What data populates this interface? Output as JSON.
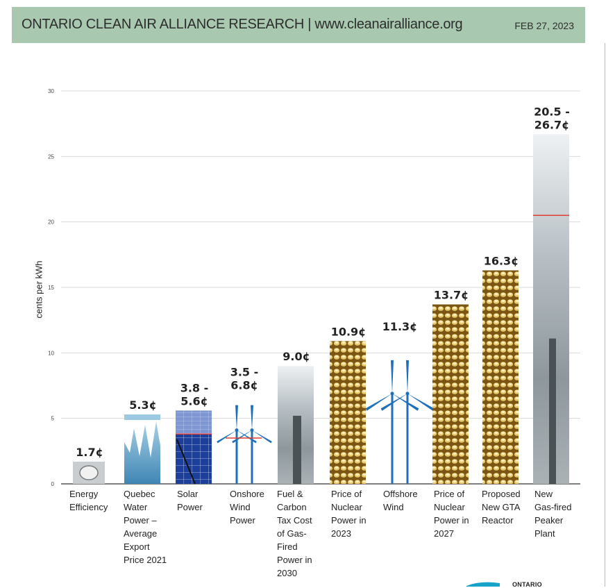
{
  "header": {
    "title": "ONTARIO CLEAN AIR ALLIANCE RESEARCH | www.cleanairalliance.org",
    "date": "FEB 27, 2023"
  },
  "logo": {
    "text": "ONTARIO"
  },
  "colors": {
    "header_bg": "#a9c8b0",
    "wind_blue": "#1e6fb8",
    "water_blue": "#5a9fc6",
    "nuclear_gold": "#b88a24",
    "smoke_grey": "#9aa2a6",
    "marker_red": "#e03c31"
  },
  "chart_data": {
    "type": "bar",
    "ylabel": "cents per kWh",
    "xlabel": "",
    "ylim": [
      0,
      30
    ],
    "yticks": [
      0,
      5,
      10,
      15,
      20,
      25,
      30
    ],
    "grid": true,
    "bars": [
      {
        "category": "Energy\nEfficiency",
        "value": 1.7,
        "label": "1.7¢",
        "fill": "efficiency"
      },
      {
        "category": "Quebec\nWater\nPower –\nAverage\nExport\nPrice 2021",
        "value": 5.3,
        "label": "5.3¢",
        "fill": "water"
      },
      {
        "category": "Solar\nPower",
        "low": 3.8,
        "value": 5.6,
        "label": "3.8 -\n5.6¢",
        "fill": "solar"
      },
      {
        "category": "Onshore\nWind\nPower",
        "low": 3.5,
        "value": 6.8,
        "label": "3.5 -\n6.8¢",
        "fill": "wind"
      },
      {
        "category": "Fuel &\nCarbon\nTax Cost\nof Gas-\nFired\nPower in\n2030",
        "value": 9.0,
        "label": "9.0¢",
        "fill": "smokestack"
      },
      {
        "category": "Price of\nNuclear\nPower in\n2023",
        "value": 10.9,
        "label": "10.9¢",
        "fill": "nuclear"
      },
      {
        "category": "Offshore\nWind",
        "value": 11.3,
        "label": "11.3¢",
        "fill": "wind"
      },
      {
        "category": "Price of\nNuclear\nPower in\n2027",
        "value": 13.7,
        "label": "13.7¢",
        "fill": "nuclear"
      },
      {
        "category": "Proposed\nNew GTA\nReactor",
        "value": 16.3,
        "label": "16.3¢",
        "fill": "nuclear"
      },
      {
        "category": "New\nGas-fired\nPeaker\nPlant",
        "low": 20.5,
        "value": 26.7,
        "label": "20.5 -\n26.7¢",
        "fill": "smokestack"
      }
    ]
  }
}
